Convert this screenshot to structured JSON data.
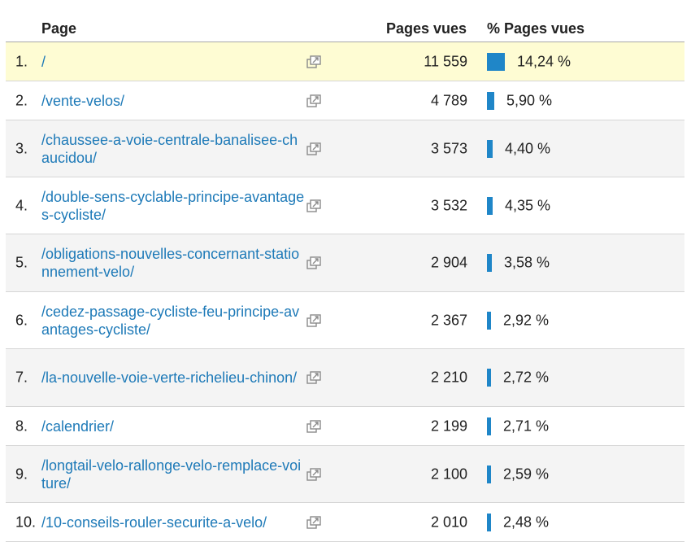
{
  "header": {
    "page": "Page",
    "views": "Pages vues",
    "pct": "% Pages vues"
  },
  "rows": [
    {
      "rank": "1.",
      "page": "/",
      "views": "11 559",
      "pct": "14,24 %",
      "share": 14.24
    },
    {
      "rank": "2.",
      "page": "/vente-velos/",
      "views": "4 789",
      "pct": "5,90 %",
      "share": 5.9
    },
    {
      "rank": "3.",
      "page": "/chaussee-a-voie-centrale-banalisee-chaucidou/",
      "views": "3 573",
      "pct": "4,40 %",
      "share": 4.4
    },
    {
      "rank": "4.",
      "page": "/double-sens-cyclable-principe-avantages-cycliste/",
      "views": "3 532",
      "pct": "4,35 %",
      "share": 4.35
    },
    {
      "rank": "5.",
      "page": "/obligations-nouvelles-concernant-stationnement-velo/",
      "views": "2 904",
      "pct": "3,58 %",
      "share": 3.58
    },
    {
      "rank": "6.",
      "page": "/cedez-passage-cycliste-feu-principe-avantages-cycliste/",
      "views": "2 367",
      "pct": "2,92 %",
      "share": 2.92
    },
    {
      "rank": "7.",
      "page": "/la-nouvelle-voie-verte-richelieu-chinon/",
      "views": "2 210",
      "pct": "2,72 %",
      "share": 2.72
    },
    {
      "rank": "8.",
      "page": "/calendrier/",
      "views": "2 199",
      "pct": "2,71 %",
      "share": 2.71
    },
    {
      "rank": "9.",
      "page": "/longtail-velo-rallonge-velo-remplace-voiture/",
      "views": "2 100",
      "pct": "2,59 %",
      "share": 2.59
    },
    {
      "rank": "10.",
      "page": "/10-conseils-rouler-securite-a-velo/",
      "views": "2 010",
      "pct": "2,48 %",
      "share": 2.48
    }
  ],
  "icons": {
    "row_action": "external-link-icon"
  },
  "colors": {
    "link": "#1e7ab8",
    "bar": "#1f86c8",
    "highlight": "#fefcd3"
  }
}
